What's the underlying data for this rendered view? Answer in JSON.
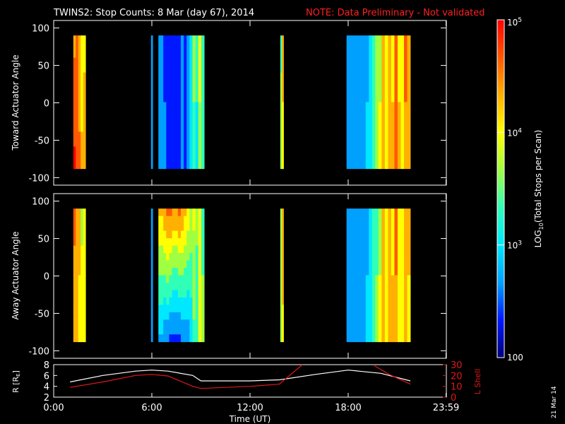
{
  "title": {
    "main": "TWINS2: Stop Counts:  8 Mar (day  67), 2014",
    "note": "NOTE: Data Preliminary - Not validated"
  },
  "side_date": "21 Mar 14",
  "colors": {
    "note": "#ff2020",
    "frame": "#ffffff",
    "background": "#000000",
    "lshell": "#e01818",
    "radius": "#ffffff"
  },
  "colorbar": {
    "label_prefix": "LOG",
    "label_sub": "10",
    "label_suffix": "(Total Stops per Scan)",
    "scale": "log",
    "range": [
      100,
      100000
    ],
    "ticks": [
      {
        "value": 100,
        "base": "100",
        "exp": ""
      },
      {
        "value": 1000,
        "base": "10",
        "exp": "3"
      },
      {
        "value": 10000,
        "base": "10",
        "exp": "4"
      },
      {
        "value": 100000,
        "base": "10",
        "exp": "5"
      }
    ],
    "colormap": [
      "#00007a",
      "#0018ff",
      "#00a0ff",
      "#00e8ff",
      "#30ffb8",
      "#a0ff40",
      "#ffff00",
      "#ffb000",
      "#ff5800",
      "#ff0000"
    ]
  },
  "chart_data": [
    {
      "type": "heatmap",
      "id": "toward",
      "ylabel": "Toward Actuator Angle",
      "ylim": [
        -110,
        110
      ],
      "yticks": [
        100,
        50,
        0,
        -50,
        -100
      ],
      "xlim": [
        0,
        24
      ],
      "data_yrange": [
        -88,
        90
      ],
      "blocks": [
        {
          "t0": 1.2,
          "t1": 1.95,
          "cols": [
            [
              15,
              18
            ],
            [
              17,
              17
            ],
            [
              14,
              16
            ],
            [
              12,
              14
            ],
            [
              13,
              15
            ]
          ]
        },
        {
          "t0": 5.95,
          "t1": 6.05,
          "cols": [
            [
              5,
              5
            ]
          ]
        },
        {
          "t0": 6.4,
          "t1": 6.7,
          "cols": [
            [
              5,
              5
            ],
            [
              5,
              4
            ]
          ]
        },
        {
          "t0": 6.7,
          "t1": 9.2,
          "cols": [
            [
              3,
              4
            ],
            [
              3,
              3
            ],
            [
              3,
              3
            ],
            [
              3,
              3
            ],
            [
              3,
              3
            ],
            [
              3,
              3
            ],
            [
              4,
              4
            ],
            [
              3,
              3
            ],
            [
              4,
              4
            ],
            [
              7,
              6
            ],
            [
              10,
              9
            ],
            [
              8,
              7
            ],
            [
              12,
              11
            ],
            [
              9,
              9
            ]
          ]
        },
        {
          "t0": 13.85,
          "t1": 14.05,
          "cols": [
            [
              9,
              11
            ],
            [
              14,
              13
            ]
          ]
        },
        {
          "t0": 17.9,
          "t1": 21.8,
          "cols": [
            [
              4,
              4
            ],
            [
              4,
              5
            ],
            [
              5,
              4
            ],
            [
              4,
              4
            ],
            [
              5,
              4
            ],
            [
              4,
              5
            ],
            [
              5,
              6
            ],
            [
              6,
              7
            ],
            [
              8,
              9
            ],
            [
              10,
              11
            ],
            [
              11,
              12
            ],
            [
              15,
              15
            ],
            [
              12,
              13
            ],
            [
              14,
              14
            ],
            [
              13,
              14
            ],
            [
              16,
              16
            ],
            [
              13,
              14
            ],
            [
              12,
              13
            ],
            [
              16,
              15
            ],
            [
              14,
              14
            ]
          ]
        }
      ]
    },
    {
      "type": "heatmap",
      "id": "away",
      "ylabel": "Away Actuator Angle",
      "ylim": [
        -110,
        110
      ],
      "yticks": [
        100,
        50,
        0,
        -50,
        -100
      ],
      "xlim": [
        0,
        24
      ],
      "data_yrange": [
        -88,
        90
      ],
      "blocks": [
        {
          "t0": 1.2,
          "t1": 1.95,
          "cols": [
            [
              16,
              14
            ],
            [
              15,
              14
            ],
            [
              14,
              13
            ],
            [
              11,
              13
            ],
            [
              12,
              13
            ]
          ]
        },
        {
          "t0": 5.95,
          "t1": 6.05,
          "cols": [
            [
              5,
              5
            ]
          ]
        },
        {
          "t0": 6.4,
          "t1": 6.7,
          "cols": [
            [
              14,
              5
            ],
            [
              14,
              5
            ]
          ]
        },
        {
          "t0": 6.7,
          "t1": 9.2,
          "cols": [
            [
              15,
              4
            ],
            [
              16,
              4
            ],
            [
              16,
              3
            ],
            [
              15,
              3
            ],
            [
              15,
              3
            ],
            [
              16,
              3
            ],
            [
              15,
              4
            ],
            [
              14,
              4
            ],
            [
              13,
              4
            ],
            [
              11,
              6
            ],
            [
              12,
              9
            ],
            [
              10,
              8
            ],
            [
              13,
              12
            ],
            [
              9,
              10
            ]
          ]
        },
        {
          "t0": 13.85,
          "t1": 14.05,
          "cols": [
            [
              10,
              11
            ],
            [
              15,
              13
            ]
          ]
        },
        {
          "t0": 17.9,
          "t1": 21.8,
          "cols": [
            [
              4,
              4
            ],
            [
              4,
              5
            ],
            [
              5,
              4
            ],
            [
              4,
              4
            ],
            [
              5,
              4
            ],
            [
              4,
              5
            ],
            [
              5,
              6
            ],
            [
              6,
              7
            ],
            [
              8,
              9
            ],
            [
              9,
              10
            ],
            [
              11,
              12
            ],
            [
              14,
              14
            ],
            [
              12,
              12
            ],
            [
              14,
              14
            ],
            [
              13,
              14
            ],
            [
              16,
              15
            ],
            [
              13,
              12
            ],
            [
              12,
              12
            ],
            [
              15,
              15
            ],
            [
              14,
              13
            ]
          ]
        }
      ]
    },
    {
      "type": "line",
      "id": "ephemeris",
      "ylabel": "R [R",
      "ylabel_sub": "E",
      "ylabel_end": "]",
      "ylabel_right": "L Shell",
      "ylim": [
        2,
        8
      ],
      "yticks": [
        8,
        6,
        4,
        2
      ],
      "ylim_right": [
        0,
        30
      ],
      "yticks_right": [
        30,
        20,
        10,
        0
      ],
      "xlim": [
        0,
        24
      ],
      "xticks": [
        {
          "value": 0,
          "label": "0:00"
        },
        {
          "value": 6,
          "label": "6:00"
        },
        {
          "value": 12,
          "label": "12:00"
        },
        {
          "value": 18,
          "label": "18:00"
        },
        {
          "value": 23.98,
          "label": "23:59"
        }
      ],
      "xlabel": "Time (UT)",
      "series": [
        {
          "axis": "left",
          "x": [
            1.0,
            3.0,
            5.0,
            6.0,
            7.0,
            8.5,
            9.0,
            12.0,
            13.8,
            16.0,
            18.0,
            20.0,
            21.8
          ],
          "y": [
            4.8,
            6.0,
            6.8,
            7.0,
            6.8,
            6.0,
            5.0,
            5.0,
            5.2,
            6.2,
            7.0,
            6.4,
            5.0
          ]
        },
        {
          "axis": "right",
          "x": [
            1.0,
            3.0,
            5.0,
            6.0,
            7.0,
            8.5,
            9.0,
            12.0,
            13.8,
            15.2
          ],
          "y": [
            9.0,
            14.0,
            20.0,
            21.0,
            19.5,
            10.0,
            8.0,
            10.0,
            12.0,
            30.0
          ]
        },
        {
          "axis": "right",
          "x": [
            19.6,
            20.5,
            21.8
          ],
          "y": [
            29.0,
            21.0,
            12.0
          ]
        }
      ]
    }
  ]
}
